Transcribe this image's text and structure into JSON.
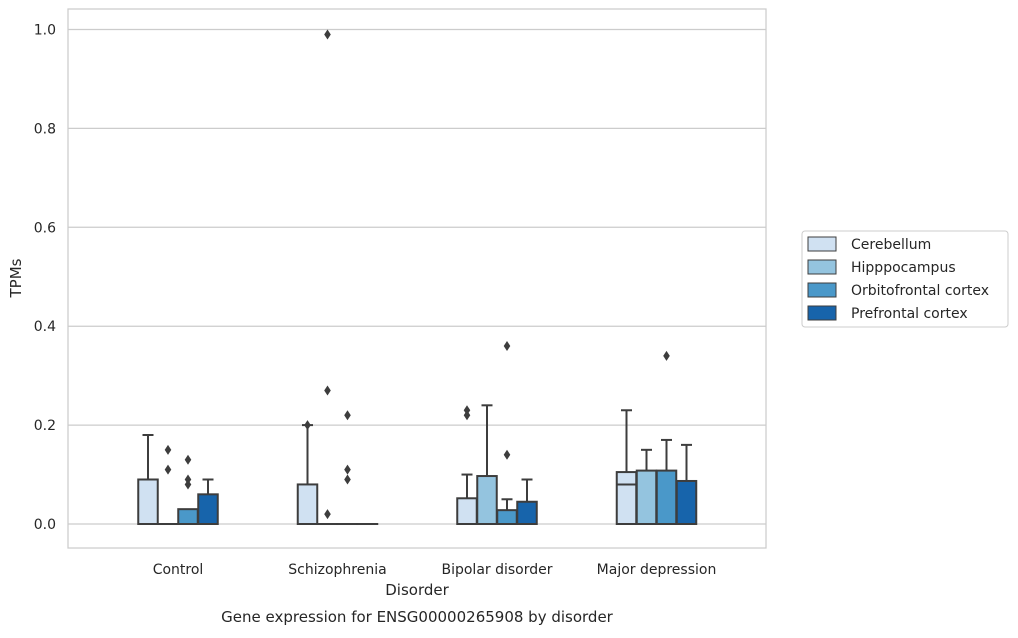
{
  "chart_data": {
    "type": "box",
    "caption": "Gene expression for ENSG00000265908 by disorder",
    "xlabel": "Disorder",
    "ylabel": "TPMs",
    "ylim": [
      -0.048,
      1.04
    ],
    "yticks": [
      0.0,
      0.2,
      0.4,
      0.6,
      0.8,
      1.0
    ],
    "ytick_labels": [
      "0.0",
      "0.2",
      "0.4",
      "0.6",
      "0.8",
      "1.0"
    ],
    "grid": "horizontal",
    "legend_position": "right",
    "categories": [
      "Control",
      "Schizophrenia",
      "Bipolar disorder",
      "Major depression"
    ],
    "series": [
      {
        "name": "Cerebellum",
        "color": "#d0e1f2",
        "boxes": [
          {
            "q1": 0.0,
            "median": 0.0,
            "q3": 0.09,
            "whisker_low": 0.0,
            "whisker_high": 0.18,
            "outliers": []
          },
          {
            "q1": 0.0,
            "median": 0.0,
            "q3": 0.08,
            "whisker_low": 0.0,
            "whisker_high": 0.2,
            "outliers": [
              0.2
            ]
          },
          {
            "q1": 0.0,
            "median": 0.0,
            "q3": 0.052,
            "whisker_low": 0.0,
            "whisker_high": 0.1,
            "outliers": [
              0.22,
              0.23
            ]
          },
          {
            "q1": 0.0,
            "median": 0.08,
            "q3": 0.105,
            "whisker_low": 0.0,
            "whisker_high": 0.23,
            "outliers": []
          }
        ]
      },
      {
        "name": "Hipppocampus",
        "color": "#94c4df",
        "boxes": [
          {
            "q1": 0.0,
            "median": 0.0,
            "q3": 0.0,
            "whisker_low": 0.0,
            "whisker_high": 0.0,
            "outliers": [
              0.11,
              0.15
            ]
          },
          {
            "q1": 0.0,
            "median": 0.0,
            "q3": 0.0,
            "whisker_low": 0.0,
            "whisker_high": 0.0,
            "outliers": [
              0.02,
              0.27,
              0.99
            ]
          },
          {
            "q1": 0.0,
            "median": 0.0,
            "q3": 0.097,
            "whisker_low": 0.0,
            "whisker_high": 0.24,
            "outliers": []
          },
          {
            "q1": 0.0,
            "median": 0.0,
            "q3": 0.108,
            "whisker_low": 0.0,
            "whisker_high": 0.15,
            "outliers": []
          }
        ]
      },
      {
        "name": "Orbitofrontal cortex",
        "color": "#4a98c9",
        "boxes": [
          {
            "q1": 0.0,
            "median": 0.0,
            "q3": 0.03,
            "whisker_low": 0.0,
            "whisker_high": 0.03,
            "outliers": [
              0.08,
              0.09,
              0.13
            ]
          },
          {
            "q1": 0.0,
            "median": 0.0,
            "q3": 0.0,
            "whisker_low": 0.0,
            "whisker_high": 0.0,
            "outliers": [
              0.09,
              0.11,
              0.22
            ]
          },
          {
            "q1": 0.0,
            "median": 0.0,
            "q3": 0.028,
            "whisker_low": 0.0,
            "whisker_high": 0.05,
            "outliers": [
              0.14,
              0.36
            ]
          },
          {
            "q1": 0.0,
            "median": 0.0,
            "q3": 0.108,
            "whisker_low": 0.0,
            "whisker_high": 0.17,
            "outliers": [
              0.34
            ]
          }
        ]
      },
      {
        "name": "Prefrontal cortex",
        "color": "#1764ab",
        "boxes": [
          {
            "q1": 0.0,
            "median": 0.0,
            "q3": 0.06,
            "whisker_low": 0.0,
            "whisker_high": 0.09,
            "outliers": []
          },
          {
            "q1": 0.0,
            "median": 0.0,
            "q3": 0.0,
            "whisker_low": 0.0,
            "whisker_high": 0.0,
            "outliers": []
          },
          {
            "q1": 0.0,
            "median": 0.0,
            "q3": 0.045,
            "whisker_low": 0.0,
            "whisker_high": 0.09,
            "outliers": []
          },
          {
            "q1": 0.0,
            "median": 0.0,
            "q3": 0.087,
            "whisker_low": 0.0,
            "whisker_high": 0.16,
            "outliers": []
          }
        ]
      }
    ]
  }
}
